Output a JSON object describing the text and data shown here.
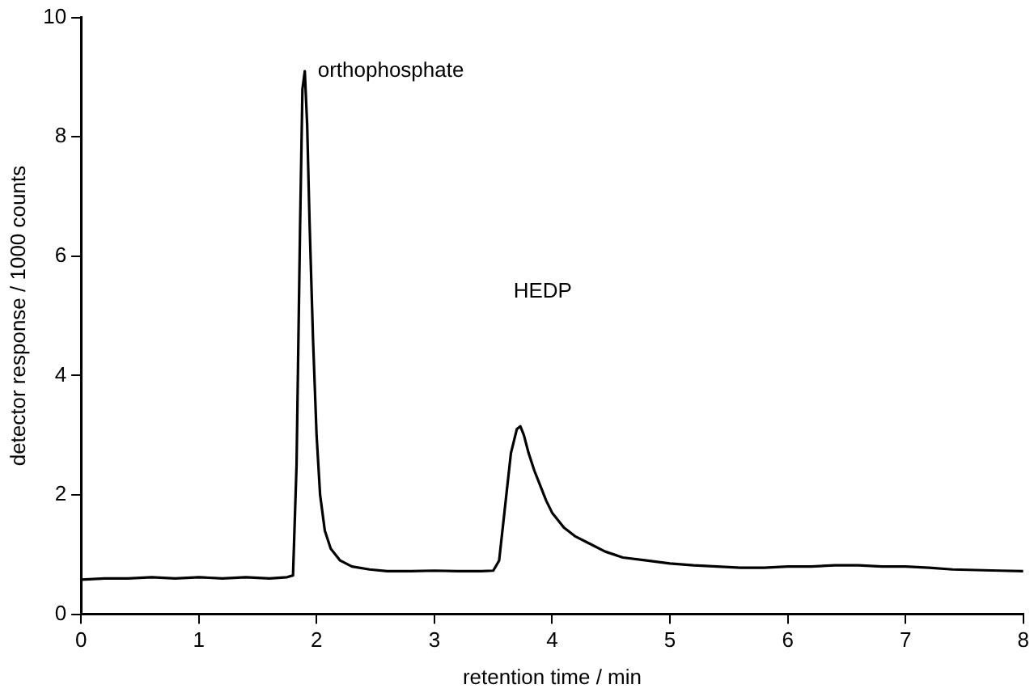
{
  "chart_data": {
    "type": "line",
    "xlabel": "retention time / min",
    "ylabel": "detector response / 1000 counts",
    "x": [
      0,
      0.2,
      0.4,
      0.6,
      0.8,
      1.0,
      1.2,
      1.4,
      1.6,
      1.75,
      1.8,
      1.83,
      1.86,
      1.88,
      1.9,
      1.92,
      1.94,
      1.97,
      2.0,
      2.03,
      2.07,
      2.12,
      2.2,
      2.3,
      2.45,
      2.6,
      2.8,
      3.0,
      3.2,
      3.4,
      3.5,
      3.55,
      3.6,
      3.65,
      3.7,
      3.73,
      3.76,
      3.8,
      3.85,
      3.9,
      3.95,
      4.0,
      4.1,
      4.2,
      4.3,
      4.45,
      4.6,
      4.8,
      5.0,
      5.2,
      5.4,
      5.6,
      5.8,
      6.0,
      6.2,
      6.4,
      6.6,
      6.8,
      7.0,
      7.2,
      7.4,
      7.6,
      7.8,
      8.0
    ],
    "series": [
      {
        "color": "#000000",
        "values": [
          0.58,
          0.6,
          0.6,
          0.62,
          0.6,
          0.62,
          0.6,
          0.62,
          0.6,
          0.62,
          0.65,
          2.5,
          6.5,
          8.8,
          9.1,
          8.2,
          6.6,
          4.6,
          3.0,
          2.0,
          1.4,
          1.1,
          0.9,
          0.8,
          0.75,
          0.72,
          0.72,
          0.73,
          0.72,
          0.72,
          0.73,
          0.9,
          1.8,
          2.7,
          3.1,
          3.15,
          3.0,
          2.7,
          2.4,
          2.15,
          1.9,
          1.7,
          1.45,
          1.3,
          1.2,
          1.05,
          0.95,
          0.9,
          0.85,
          0.82,
          0.8,
          0.78,
          0.78,
          0.8,
          0.8,
          0.82,
          0.82,
          0.8,
          0.8,
          0.78,
          0.75,
          0.74,
          0.73,
          0.72
        ]
      }
    ],
    "xlim": [
      0,
      8
    ],
    "xticks": [
      0,
      1,
      2,
      3,
      4,
      5,
      6,
      7,
      8
    ],
    "ylim": [
      0,
      10
    ],
    "yticks": [
      0,
      2,
      4,
      6,
      8,
      10
    ],
    "grid": false,
    "legend": false,
    "marker": "none",
    "line_style": "solid",
    "annotations": [
      {
        "text": "orthophosphate",
        "x": 1.9,
        "y": 9.1
      },
      "HEDP"
    ]
  }
}
